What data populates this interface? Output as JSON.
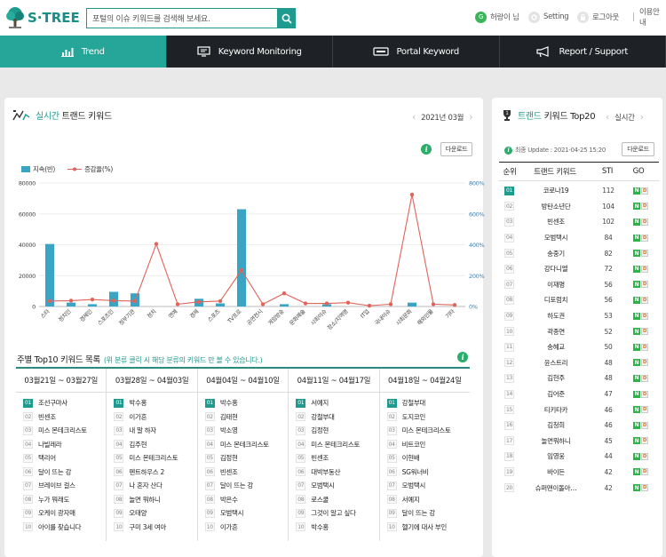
{
  "header": {
    "logo_text": "S·TREE",
    "search_placeholder": "포털의 이슈 키워드를 검색해 보세요.",
    "user_initial": "G",
    "user_name": "허랑이 님",
    "setting_label": "Setting",
    "logout_label": "로그아웃",
    "guide_label": "이용안내"
  },
  "nav": [
    {
      "label": "Trend",
      "icon": "chart-icon"
    },
    {
      "label": "Keyword Monitoring",
      "icon": "monitor-icon"
    },
    {
      "label": "Portal Keyword",
      "icon": "portal-icon"
    },
    {
      "label": "Report / Support",
      "icon": "megaphone-icon"
    }
  ],
  "trend_panel": {
    "title_accent": "실시간",
    "title_rest": "트랜드 키워드",
    "date": "2021년 03월",
    "download_label": "다운로드",
    "info_glyph": "i"
  },
  "chart_data": {
    "type": "bar",
    "categories": [
      "스타",
      "정치인",
      "경제인",
      "스포츠인",
      "정부기관",
      "정치",
      "연예",
      "경제",
      "스포츠",
      "TV프로",
      "공연전시",
      "게임방송",
      "문화예술",
      "사회이슈",
      "장소/지역명",
      "IT업",
      "국내이슈",
      "사회문화",
      "해외인물",
      "기타"
    ],
    "series": [
      {
        "name": "지속(빈)",
        "type": "bar",
        "axis": "left",
        "values": [
          40500,
          2500,
          1500,
          9500,
          8500,
          0,
          0,
          5000,
          2000,
          63000,
          0,
          1500,
          0,
          1500,
          0,
          0,
          0,
          2500,
          0,
          0
        ]
      },
      {
        "name": "증감율(%)",
        "type": "line",
        "axis": "right",
        "values": [
          35,
          38,
          45,
          38,
          35,
          405,
          15,
          30,
          35,
          235,
          15,
          85,
          20,
          20,
          25,
          5,
          15,
          725,
          15,
          10
        ]
      }
    ],
    "y_left": {
      "ticks": [
        "0",
        "20000",
        "40000",
        "60000",
        "80000"
      ],
      "min": 0,
      "max": 80000
    },
    "y_right": {
      "ticks": [
        "0%",
        "200%",
        "400%",
        "600%",
        "800%"
      ],
      "min": 0,
      "max": 800
    },
    "legend_position": "top-left",
    "grid": true
  },
  "weekly": {
    "title": "주별 Top10 키워드 목록",
    "subtitle": "(위 분류 클릭 시 해당 분류의 키워드 만 볼 수 있습니다.)",
    "columns": [
      {
        "period": "03월21일 ~ 03월27일",
        "items": [
          "조선구마사",
          "빈센조",
          "미스 몬테크리스토",
          "나빌레라",
          "택리어",
          "달이 뜨는 강",
          "브레이브 걸스",
          "누가 뭐래도",
          "오케이 광자매",
          "아이를 찾습니다"
        ]
      },
      {
        "period": "03월28일 ~ 04월03일",
        "items": [
          "박수홍",
          "이가흔",
          "내 말 하자",
          "김주현",
          "미스 몬테크리스토",
          "펜트하우스 2",
          "나 혼자 산다",
          "놀면 뭐하니",
          "오태양",
          "구미 3세 여아"
        ]
      },
      {
        "period": "04월04일 ~ 04월10일",
        "items": [
          "박수홍",
          "김태현",
          "박소영",
          "미스 몬테크리스토",
          "김정현",
          "빈센조",
          "달이 뜨는 강",
          "박은수",
          "모범택시",
          "이가흔"
        ]
      },
      {
        "period": "04월11일 ~ 04월17일",
        "items": [
          "서예지",
          "강철부대",
          "김정현",
          "미스 몬테크리스토",
          "빈센조",
          "대박부동산",
          "모범택시",
          "로스쿨",
          "그것이 알고 싶다",
          "박수홍"
        ]
      },
      {
        "period": "04월18일 ~ 04월24일",
        "items": [
          "강철부대",
          "도지코인",
          "미스 몬테크리스토",
          "비트코인",
          "이현배",
          "SG워너비",
          "모범택시",
          "서예지",
          "달이 뜨는 강",
          "헬기에 대사 부인"
        ]
      }
    ]
  },
  "top20": {
    "title_accent": "트랜드",
    "title_rest": "키워드 Top20",
    "mode": "실시간",
    "update_text": "최종 Update : 2021-04-25 15:20",
    "download_label": "다운로드",
    "headers": {
      "rank": "순위",
      "keyword": "트랜드 키워드",
      "sti": "STI",
      "go": "GO"
    },
    "go_n": "N",
    "go_d": "D",
    "rows": [
      {
        "rank": "01",
        "keyword": "코로나19",
        "sti": "112"
      },
      {
        "rank": "02",
        "keyword": "방탄소년단",
        "sti": "104"
      },
      {
        "rank": "03",
        "keyword": "빈센조",
        "sti": "102"
      },
      {
        "rank": "04",
        "keyword": "모범택시",
        "sti": "84"
      },
      {
        "rank": "05",
        "keyword": "송중기",
        "sti": "82"
      },
      {
        "rank": "06",
        "keyword": "강다니엘",
        "sti": "72"
      },
      {
        "rank": "07",
        "keyword": "이재명",
        "sti": "56"
      },
      {
        "rank": "08",
        "keyword": "디포럼치",
        "sti": "56"
      },
      {
        "rank": "09",
        "keyword": "하도권",
        "sti": "53"
      },
      {
        "rank": "10",
        "keyword": "곽종연",
        "sti": "52"
      },
      {
        "rank": "11",
        "keyword": "송혜교",
        "sti": "50"
      },
      {
        "rank": "12",
        "keyword": "윤스트리",
        "sti": "48"
      },
      {
        "rank": "13",
        "keyword": "김현주",
        "sti": "48"
      },
      {
        "rank": "14",
        "keyword": "김어준",
        "sti": "47"
      },
      {
        "rank": "15",
        "keyword": "티키타카",
        "sti": "46"
      },
      {
        "rank": "16",
        "keyword": "김청희",
        "sti": "46"
      },
      {
        "rank": "17",
        "keyword": "놀면뭐하니",
        "sti": "45"
      },
      {
        "rank": "18",
        "keyword": "임영웅",
        "sti": "44"
      },
      {
        "rank": "19",
        "keyword": "바이든",
        "sti": "42"
      },
      {
        "rank": "20",
        "keyword": "슈퍼맨이돌아…",
        "sti": "42"
      }
    ]
  },
  "colors": {
    "accent": "#1f9a8e",
    "nav_bg": "#1e2226",
    "nav_active": "#26a699",
    "bar": "#3aa4c4",
    "line": "#e0645a",
    "info": "#2bad6b"
  }
}
